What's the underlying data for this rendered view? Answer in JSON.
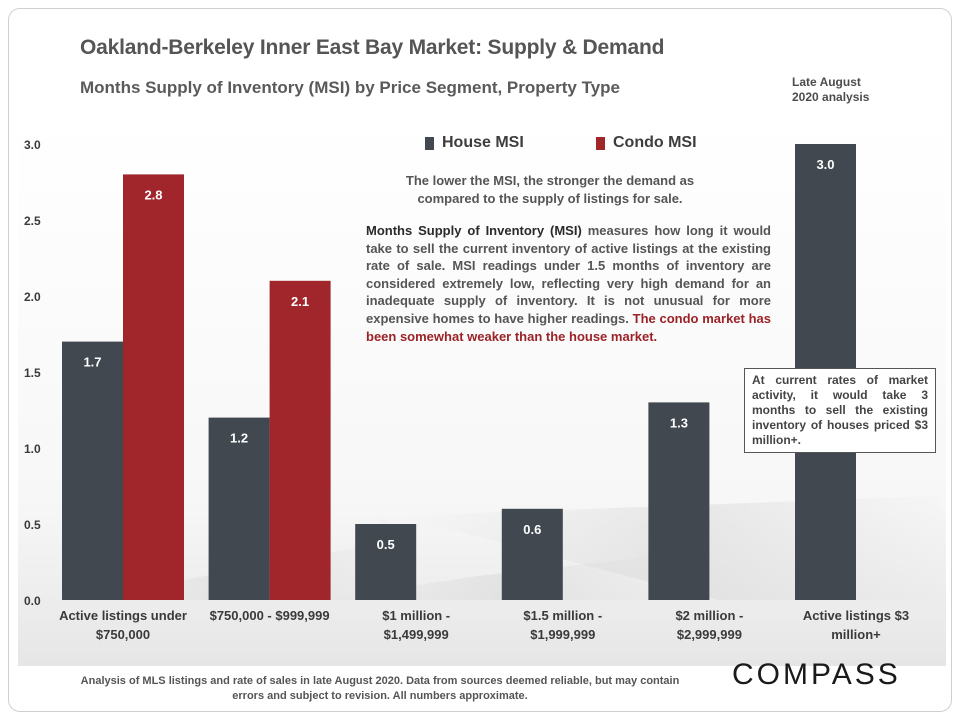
{
  "header": {
    "title": "Oakland-Berkeley Inner East Bay Market: Supply & Demand",
    "subtitle": "Months Supply of Inventory (MSI) by Price Segment, Property Type",
    "analysis_date_line1": "Late August",
    "analysis_date_line2": "2020 analysis"
  },
  "legend": {
    "house": "House MSI",
    "condo": "Condo MSI"
  },
  "notes": {
    "center": "The lower the MSI, the stronger the demand as compared to the supply of listings for sale.",
    "para_lead": "Months Supply of Inventory (MSI)",
    "para_body": " measures how long it would take to sell the current inventory of active listings at the existing rate of sale. MSI readings under 1.5 months of inventory are considered extremely low, reflecting very high demand for an inadequate supply of inventory. It is not unusual for more expensive homes to have higher readings. ",
    "para_red": "The condo market has been somewhat weaker than the house market."
  },
  "callout": "At current rates of market activity, it would take 3 months to sell the existing inventory of houses priced $3 million+.",
  "footnote": "Analysis of MLS listings and rate of sales in late August 2020. Data from sources deemed reliable, but may contain errors and subject to revision. All numbers approximate.",
  "brand": "COMPASS",
  "colors": {
    "house": "#414850",
    "condo": "#a0262b",
    "label_text": "#ffffff",
    "axis_text": "#3a3a3a"
  },
  "chart_data": {
    "type": "bar",
    "title": "Months Supply of Inventory (MSI) by Price Segment, Property Type",
    "xlabel": "",
    "ylabel": "",
    "ylim": [
      0,
      3.0
    ],
    "yticks": [
      "0.0",
      "0.5",
      "1.0",
      "1.5",
      "2.0",
      "2.5",
      "3.0"
    ],
    "ytick_values": [
      0,
      0.5,
      1.0,
      1.5,
      2.0,
      2.5,
      3.0
    ],
    "categories": [
      [
        "Active listings under",
        "$750,000"
      ],
      [
        "$750,000 - $999,999"
      ],
      [
        "$1 million -",
        "$1,499,999"
      ],
      [
        "$1.5 million -",
        "$1,999,999"
      ],
      [
        "$2 million -",
        "$2,999,999"
      ],
      [
        "Active listings $3",
        "million+"
      ]
    ],
    "series": [
      {
        "name": "House MSI",
        "values": [
          1.7,
          1.2,
          0.5,
          0.6,
          1.3,
          3.0
        ],
        "labels": [
          "1.7",
          "1.2",
          "0.5",
          "0.6",
          "1.3",
          "3.0"
        ]
      },
      {
        "name": "Condo MSI",
        "values": [
          2.8,
          2.1,
          null,
          null,
          null,
          null
        ],
        "labels": [
          "2.8",
          "2.1",
          "",
          "",
          "",
          ""
        ]
      }
    ],
    "grid": false,
    "legend_position": "top-center"
  }
}
